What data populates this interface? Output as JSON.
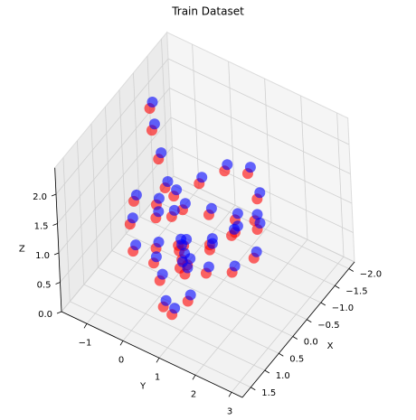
{
  "chart_data": {
    "type": "scatter3d",
    "title": "Train Dataset",
    "xlabel": "X",
    "ylabel": "Y",
    "zlabel": "Z",
    "xlim": [
      -2.2,
      1.8
    ],
    "ylim": [
      -1.7,
      3.3
    ],
    "zlim": [
      0,
      2.45
    ],
    "xticks": [
      {
        "value": -2.0,
        "label": "−2.0"
      },
      {
        "value": -1.5,
        "label": "−1.5"
      },
      {
        "value": -1.0,
        "label": "−1.0"
      },
      {
        "value": -0.5,
        "label": "−0.5"
      },
      {
        "value": 0.0,
        "label": "0.0"
      },
      {
        "value": 0.5,
        "label": "0.5"
      },
      {
        "value": 1.0,
        "label": "1.0"
      },
      {
        "value": 1.5,
        "label": "1.5"
      }
    ],
    "yticks": [
      {
        "value": -1,
        "label": "−1"
      },
      0,
      1,
      2,
      3
    ],
    "zticks": [
      {
        "value": 0.0,
        "label": "0.0"
      },
      {
        "value": 0.5,
        "label": "0.5"
      },
      {
        "value": 1.0,
        "label": "1.0"
      },
      {
        "value": 1.5,
        "label": "1.5"
      },
      {
        "value": 2.0,
        "label": "2.0"
      }
    ],
    "grid": true,
    "series": [
      {
        "color": "#ff0000",
        "x": [
          -0.9,
          -0.7,
          -0.4,
          -0.1,
          0.2,
          0.5,
          0.8,
          1.1,
          1.3,
          1.1,
          0.7,
          0.3,
          -0.1,
          -0.5,
          -0.9,
          -1.3,
          -1.6,
          -1.4,
          -1.0,
          -0.6,
          -0.2,
          0.2,
          0.6,
          1.0,
          1.2,
          0.9,
          0.5,
          0.1,
          -0.3,
          -0.7,
          -1.1,
          -1.4,
          -1.2,
          -0.8,
          -0.4,
          0.0,
          0.4,
          0.7,
          0.4,
          0.0
        ],
        "y": [
          -1.2,
          -1.0,
          -0.6,
          -0.2,
          0.2,
          0.6,
          1.0,
          1.3,
          1.0,
          0.6,
          0.2,
          -0.2,
          -0.5,
          -0.3,
          0.1,
          0.5,
          0.9,
          1.3,
          1.6,
          1.8,
          1.5,
          1.1,
          0.7,
          0.3,
          -0.1,
          -0.4,
          -0.6,
          -0.3,
          0.1,
          0.5,
          0.9,
          1.2,
          0.8,
          0.4,
          0.0,
          0.2,
          0.6,
          1.0,
          1.4,
          1.7
        ],
        "z": [
          2.05,
          1.85,
          1.65,
          1.45,
          1.25,
          1.05,
          0.85,
          0.65,
          0.45,
          0.35,
          0.45,
          0.65,
          0.85,
          1.05,
          1.15,
          1.25,
          1.15,
          0.95,
          0.75,
          0.55,
          0.45,
          0.55,
          0.75,
          0.95,
          1.15,
          1.35,
          1.45,
          1.25,
          1.05,
          0.85,
          0.65,
          0.55,
          0.35,
          0.25,
          0.35,
          0.55,
          0.75,
          0.95,
          1.15,
          1.25
        ]
      },
      {
        "color": "#0000ff",
        "x": [
          -1.0,
          -0.8,
          -0.5,
          -0.2,
          0.1,
          0.4,
          0.7,
          1.0,
          1.2,
          1.0,
          0.6,
          0.2,
          -0.2,
          -0.6,
          -1.0,
          -1.4,
          -1.7,
          -1.5,
          -1.1,
          -0.7,
          -0.3,
          0.1,
          0.5,
          0.9,
          1.1,
          0.8,
          0.4,
          0.0,
          -0.4,
          -0.8,
          -1.2,
          -1.5,
          -1.3,
          -0.9,
          -0.5,
          -0.1,
          0.3,
          0.6,
          0.3,
          -0.1
        ],
        "y": [
          -1.2,
          -1.0,
          -0.6,
          -0.2,
          0.2,
          0.6,
          1.0,
          1.3,
          1.0,
          0.6,
          0.2,
          -0.2,
          -0.5,
          -0.3,
          0.1,
          0.5,
          0.9,
          1.3,
          1.6,
          1.8,
          1.5,
          1.1,
          0.7,
          0.3,
          -0.1,
          -0.4,
          -0.6,
          -0.3,
          0.1,
          0.5,
          0.9,
          1.2,
          0.8,
          0.4,
          0.0,
          0.2,
          0.6,
          1.0,
          1.4,
          1.7
        ],
        "z": [
          2.1,
          1.9,
          1.7,
          1.5,
          1.3,
          1.1,
          0.9,
          0.7,
          0.5,
          0.4,
          0.5,
          0.7,
          0.9,
          1.1,
          1.2,
          1.3,
          1.2,
          1.0,
          0.8,
          0.6,
          0.5,
          0.6,
          0.8,
          1.0,
          1.2,
          1.4,
          1.5,
          1.3,
          1.1,
          0.9,
          0.7,
          0.6,
          0.4,
          0.3,
          0.4,
          0.6,
          0.8,
          1.0,
          1.2,
          1.3
        ]
      }
    ]
  }
}
